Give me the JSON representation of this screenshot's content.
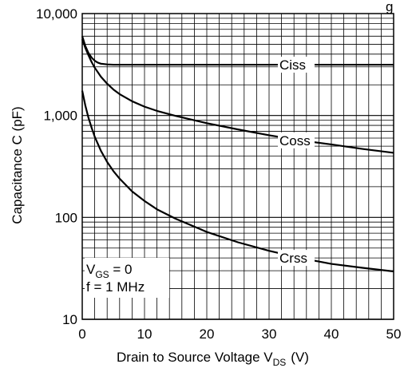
{
  "chart_data": {
    "type": "line",
    "title_fragment": "g",
    "xlabel_main": "Drain to Source Voltage  V",
    "xlabel_sub": "DS",
    "xlabel_unit": "(V)",
    "ylabel": "Capacitance  C  (pF)",
    "x_scale": "linear",
    "y_scale": "log",
    "xlim": [
      0,
      50
    ],
    "ylim": [
      10,
      10000
    ],
    "grid": true,
    "x_ticks": [
      0,
      10,
      20,
      30,
      40,
      50
    ],
    "x_tick_labels": [
      "0",
      "10",
      "20",
      "30",
      "40",
      "50"
    ],
    "y_ticks": [
      10,
      100,
      1000,
      10000
    ],
    "y_tick_labels": [
      "10",
      "100",
      "1,000",
      "10,000"
    ],
    "series": [
      {
        "name": "Ciss",
        "x": [
          0,
          0.5,
          1,
          1.5,
          2,
          2.5,
          3,
          4,
          5,
          7,
          10,
          20,
          30,
          40,
          50
        ],
        "y": [
          6000,
          4800,
          4100,
          3700,
          3450,
          3300,
          3220,
          3170,
          3150,
          3150,
          3150,
          3150,
          3150,
          3150,
          3150
        ]
      },
      {
        "name": "Coss",
        "x": [
          0,
          0.5,
          1,
          1.5,
          2,
          3,
          4,
          5,
          6,
          8,
          10,
          12,
          15,
          20,
          25,
          30,
          35,
          40,
          45,
          50
        ],
        "y": [
          5600,
          4600,
          3900,
          3350,
          2950,
          2400,
          2050,
          1800,
          1620,
          1380,
          1220,
          1110,
          990,
          840,
          730,
          640,
          570,
          520,
          470,
          430
        ]
      },
      {
        "name": "Crss",
        "x": [
          0,
          0.5,
          1,
          1.5,
          2,
          3,
          4,
          5,
          6,
          8,
          10,
          12,
          15,
          20,
          25,
          30,
          35,
          40,
          45,
          50
        ],
        "y": [
          1750,
          1250,
          950,
          760,
          620,
          450,
          350,
          285,
          240,
          180,
          145,
          120,
          97,
          72,
          57,
          47,
          40,
          35,
          32,
          29.5
        ]
      }
    ],
    "series_label_positions": {
      "Ciss": 35,
      "Coss": 35,
      "Crss": 35
    },
    "annotation": {
      "line1_main": "V",
      "line1_sub": "GS",
      "line1_rest": " = 0",
      "line2": "f = 1 MHz"
    }
  }
}
